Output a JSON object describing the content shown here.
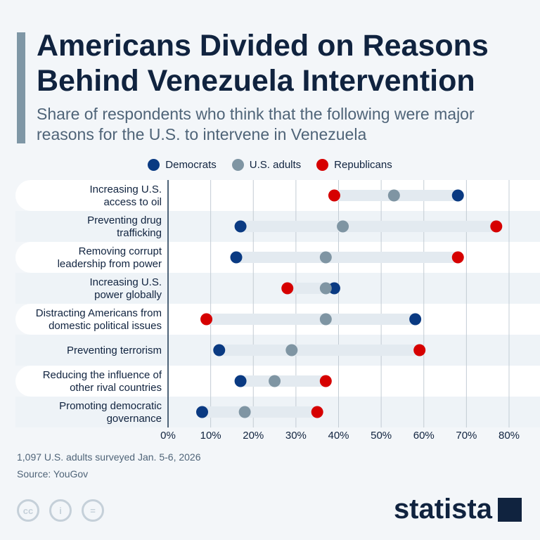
{
  "title": "Americans Divided on Reasons Behind Venezuela Intervention",
  "subtitle": "Share of respondents who think that the following were major reasons for the U.S. to intervene in Venezuela",
  "footer": {
    "note": "1,097 U.S. adults surveyed Jan. 5-6, 2026",
    "source": "Source: YouGov",
    "brand": "statista"
  },
  "colors": {
    "Democrats": "#0a3a82",
    "U.S. adults": "#7f95a3",
    "Republicans": "#d60000",
    "range": "#e3eaf0"
  },
  "chart_data": {
    "type": "dot-range",
    "xlim": [
      0,
      80
    ],
    "xticks": [
      "0%",
      "10%",
      "20%",
      "30%",
      "40%",
      "50%",
      "60%",
      "70%",
      "80%"
    ],
    "legend_position": "top",
    "grid": true,
    "categories": [
      [
        "Increasing U.S.",
        "access to oil"
      ],
      [
        "Preventing drug",
        "trafficking"
      ],
      [
        "Removing corrupt",
        "leadership from power"
      ],
      [
        "Increasing U.S.",
        "power globally"
      ],
      [
        "Distracting Americans from",
        "domestic political issues"
      ],
      [
        "Preventing terrorism"
      ],
      [
        "Reducing the influence of",
        "other rival countries"
      ],
      [
        "Promoting democratic",
        "governance"
      ]
    ],
    "series": [
      {
        "name": "Democrats",
        "values": [
          68,
          17,
          16,
          39,
          58,
          12,
          17,
          8
        ]
      },
      {
        "name": "U.S. adults",
        "values": [
          53,
          41,
          37,
          37,
          37,
          29,
          25,
          18
        ]
      },
      {
        "name": "Republicans",
        "values": [
          39,
          77,
          68,
          28,
          9,
          59,
          37,
          35
        ]
      }
    ]
  }
}
